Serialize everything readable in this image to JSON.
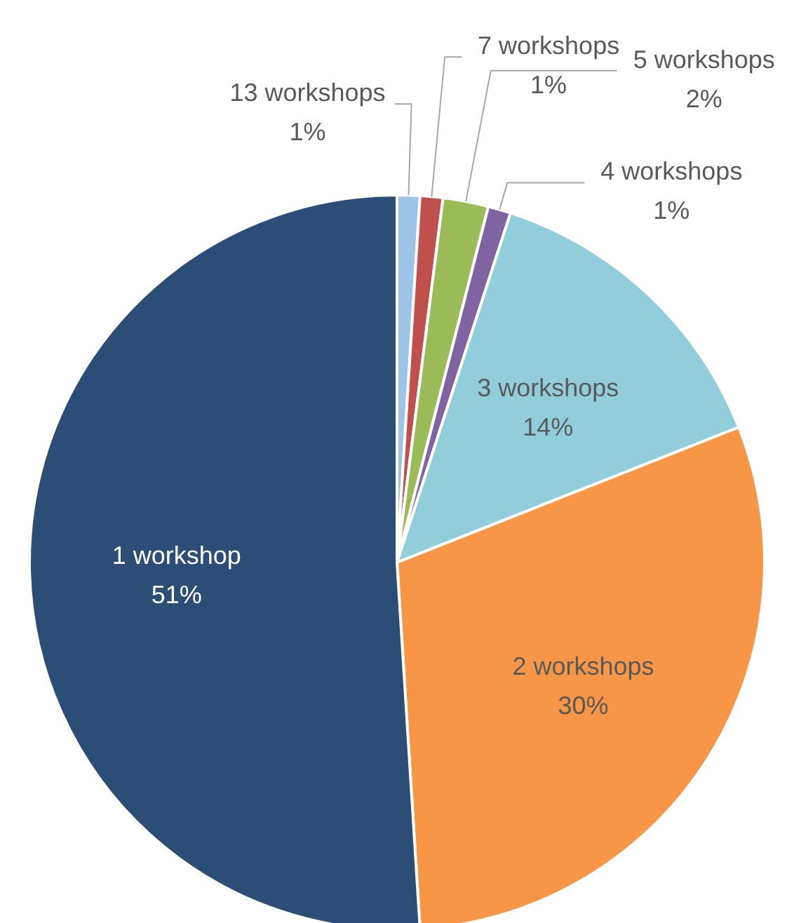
{
  "chart_data": {
    "type": "pie",
    "categories": [
      "13 workshops",
      "7 workshops",
      "5 workshops",
      "4 workshops",
      "3 workshops",
      "2 workshops",
      "1 workshop"
    ],
    "values": [
      1,
      1,
      2,
      1,
      14,
      30,
      51
    ],
    "value_labels": [
      "1%",
      "1%",
      "2%",
      "1%",
      "14%",
      "30%",
      "51%"
    ],
    "colors": [
      "#9dc3e6",
      "#c0504d",
      "#9bbb59",
      "#8064a2",
      "#92cddc",
      "#f79646",
      "#2c4d75"
    ]
  }
}
